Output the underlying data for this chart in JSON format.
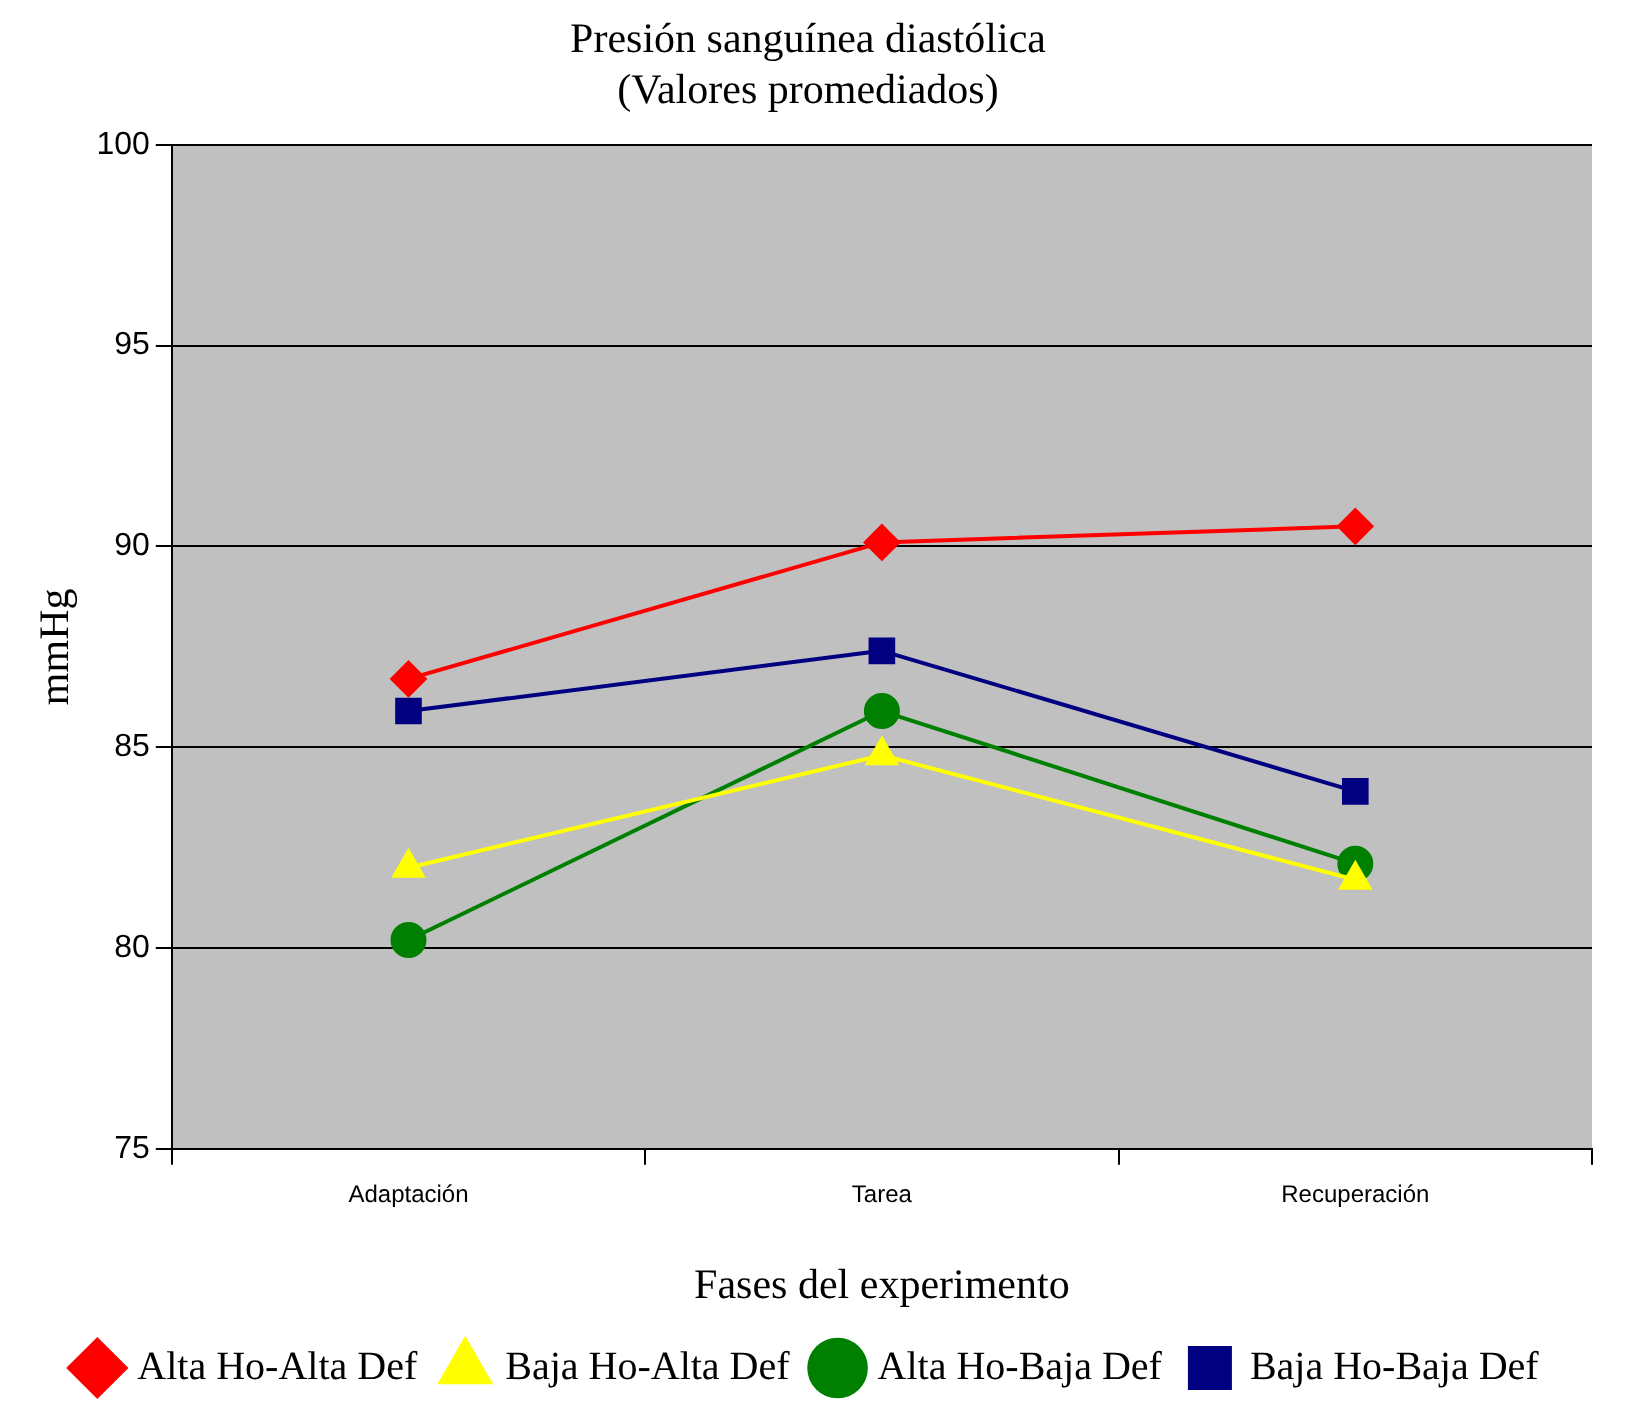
{
  "chart_data": {
    "type": "line",
    "title": [
      "Presión sanguínea diastólica",
      "(Valores promediados)"
    ],
    "xlabel": "Fases del experimento",
    "ylabel": "mmHg",
    "categories": [
      "Adaptación",
      "Tarea",
      "Recuperación"
    ],
    "series": [
      {
        "name": "Alta Ho-Alta Def",
        "color": "#ff0000",
        "marker": "diamond",
        "values": [
          86.7,
          90.1,
          90.5
        ]
      },
      {
        "name": "Baja Ho-Alta Def",
        "color": "#ffff00",
        "marker": "triangle",
        "values": [
          82.0,
          84.8,
          81.7
        ]
      },
      {
        "name": "Alta Ho-Baja Def",
        "color": "#008000",
        "marker": "circle",
        "values": [
          80.2,
          85.9,
          82.1
        ]
      },
      {
        "name": "Baja Ho-Baja Def",
        "color": "#000080",
        "marker": "square",
        "values": [
          85.9,
          87.4,
          83.9
        ]
      }
    ],
    "ylim": [
      75,
      100
    ],
    "yticks": [
      75,
      80,
      85,
      90,
      95,
      100
    ],
    "grid": "y",
    "legend": "bottom",
    "line_style": "solid"
  }
}
